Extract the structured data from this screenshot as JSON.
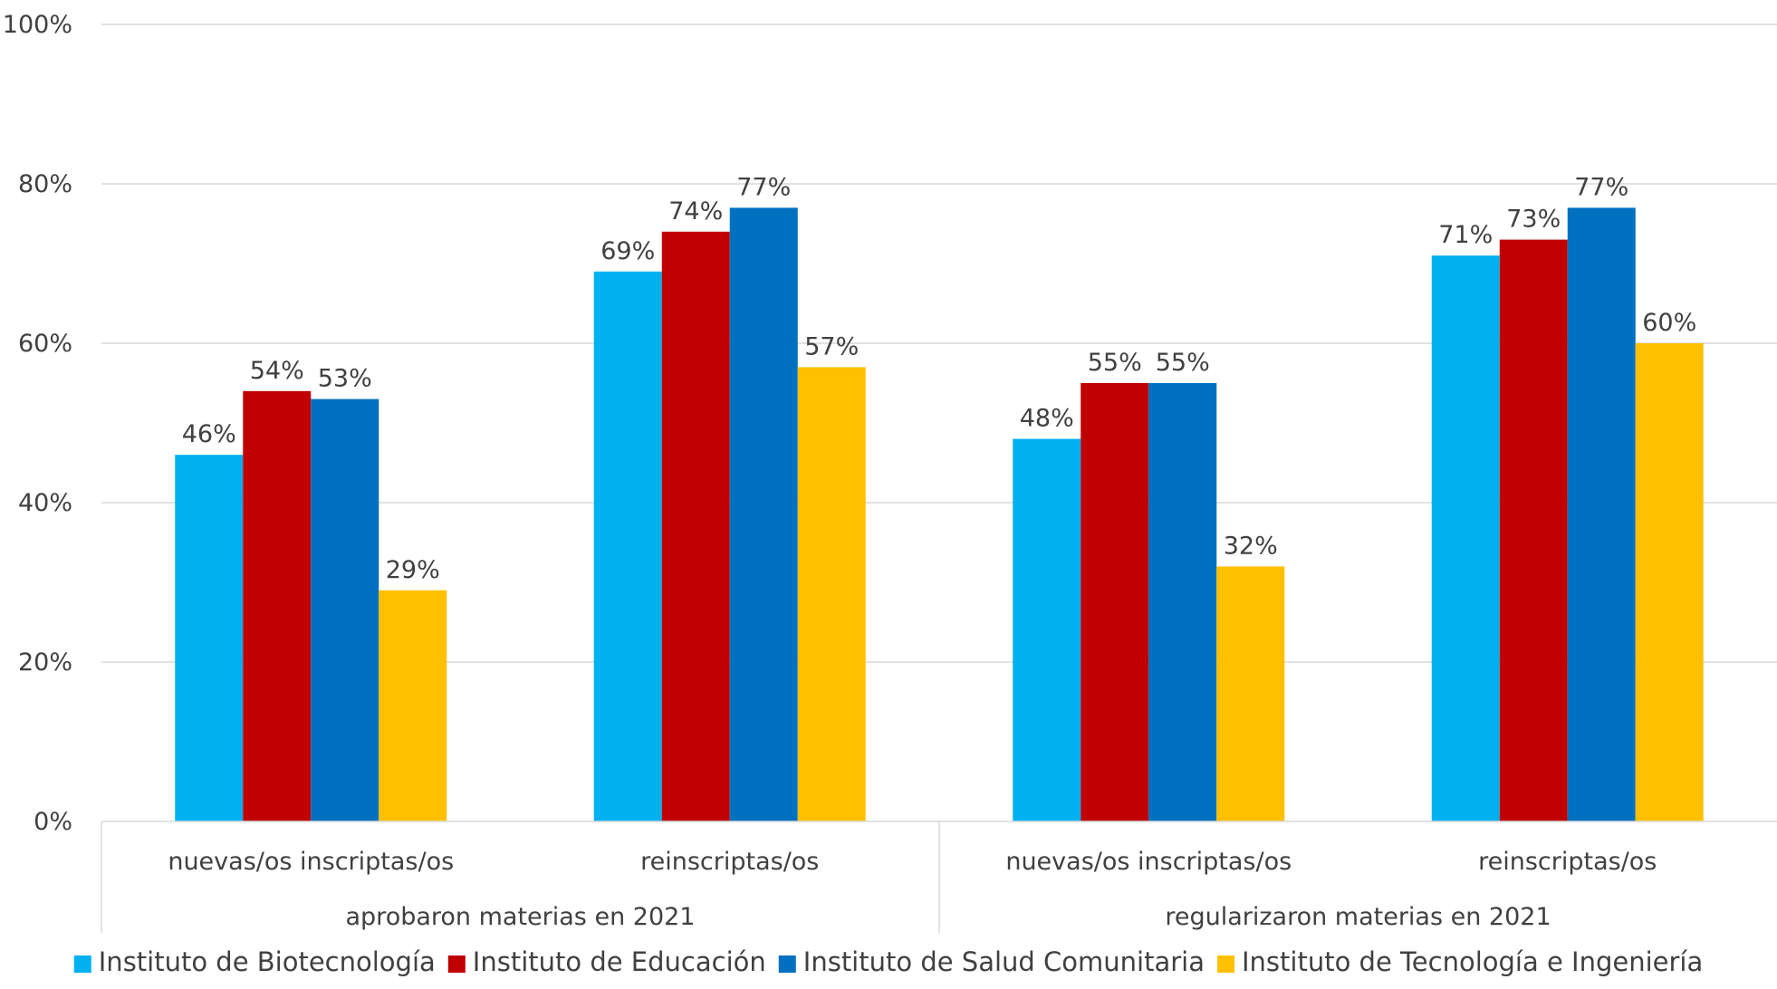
{
  "chart_data": {
    "type": "bar",
    "title": "",
    "xlabel": "",
    "ylabel": "",
    "ylim": [
      0,
      100
    ],
    "yticks": [
      "0%",
      "20%",
      "40%",
      "60%",
      "80%",
      "100%"
    ],
    "grid": true,
    "legend": "bottom",
    "groups": [
      {
        "label": "aprobaron materias en 2021",
        "categories": [
          "nuevas/os inscriptas/os",
          "reinscriptas/os"
        ]
      },
      {
        "label": "regularizaron materias en 2021",
        "categories": [
          "nuevas/os inscriptas/os",
          "reinscriptas/os"
        ]
      }
    ],
    "categories": [
      "nuevas/os inscriptas/os",
      "reinscriptas/os",
      "nuevas/os inscriptas/os",
      "reinscriptas/os"
    ],
    "series": [
      {
        "name": "Instituto de Biotecnología",
        "color": "#00b0f0",
        "values": [
          46,
          69,
          48,
          71
        ],
        "labels": [
          "46%",
          "69%",
          "48%",
          "71%"
        ]
      },
      {
        "name": "Instituto de Educación",
        "color": "#c00000",
        "values": [
          54,
          74,
          55,
          73
        ],
        "labels": [
          "54%",
          "74%",
          "55%",
          "73%"
        ]
      },
      {
        "name": "Instituto de Salud Comunitaria",
        "color": "#0070c0",
        "values": [
          53,
          77,
          55,
          77
        ],
        "labels": [
          "53%",
          "77%",
          "55%",
          "77%"
        ]
      },
      {
        "name": "Instituto de Tecnología e Ingeniería",
        "color": "#ffc000",
        "values": [
          29,
          57,
          32,
          60
        ],
        "labels": [
          "29%",
          "57%",
          "32%",
          "60%"
        ]
      }
    ]
  }
}
